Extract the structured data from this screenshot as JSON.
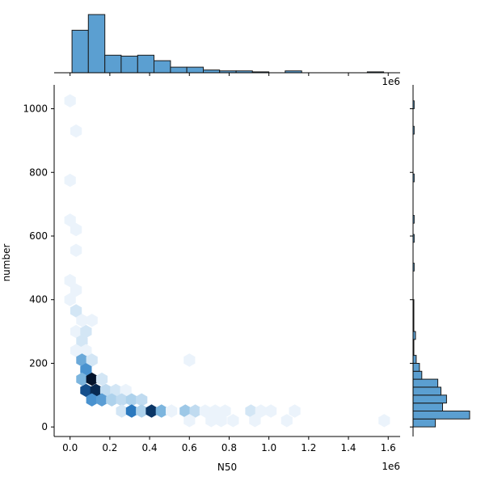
{
  "chart_data": {
    "type": "hexbin",
    "xlabel": "N50",
    "ylabel": "number",
    "x_offset_label": "1e6",
    "top_marginal_offset_label": "1e6",
    "xlim": [
      -0.08,
      1.66
    ],
    "ylim": [
      -30,
      1075
    ],
    "x_ticks": [
      0.0,
      0.2,
      0.4,
      0.6,
      0.8,
      1.0,
      1.2,
      1.4,
      1.6
    ],
    "x_tick_labels": [
      "0.0",
      "0.2",
      "0.4",
      "0.6",
      "0.8",
      "1.0",
      "1.2",
      "1.4",
      "1.6"
    ],
    "y_ticks": [
      0,
      200,
      400,
      600,
      800,
      1000
    ],
    "y_tick_labels": [
      "0",
      "200",
      "400",
      "600",
      "800",
      "1000"
    ],
    "hex_cells": [
      {
        "x": 0.0,
        "y": 1025,
        "count": 1
      },
      {
        "x": 0.03,
        "y": 930,
        "count": 1
      },
      {
        "x": 0.0,
        "y": 775,
        "count": 1
      },
      {
        "x": 0.0,
        "y": 650,
        "count": 1
      },
      {
        "x": 0.03,
        "y": 620,
        "count": 1
      },
      {
        "x": 0.03,
        "y": 555,
        "count": 1
      },
      {
        "x": 0.0,
        "y": 460,
        "count": 1
      },
      {
        "x": 0.03,
        "y": 430,
        "count": 1
      },
      {
        "x": 0.0,
        "y": 400,
        "count": 1
      },
      {
        "x": 0.03,
        "y": 365,
        "count": 2
      },
      {
        "x": 0.06,
        "y": 335,
        "count": 1
      },
      {
        "x": 0.11,
        "y": 335,
        "count": 1
      },
      {
        "x": 0.03,
        "y": 300,
        "count": 1
      },
      {
        "x": 0.08,
        "y": 300,
        "count": 2
      },
      {
        "x": 0.06,
        "y": 270,
        "count": 2
      },
      {
        "x": 0.03,
        "y": 240,
        "count": 1
      },
      {
        "x": 0.08,
        "y": 240,
        "count": 1
      },
      {
        "x": 0.06,
        "y": 210,
        "count": 8
      },
      {
        "x": 0.11,
        "y": 210,
        "count": 2
      },
      {
        "x": 0.6,
        "y": 210,
        "count": 1
      },
      {
        "x": 0.08,
        "y": 180,
        "count": 10
      },
      {
        "x": 0.06,
        "y": 150,
        "count": 7
      },
      {
        "x": 0.11,
        "y": 150,
        "count": 20
      },
      {
        "x": 0.16,
        "y": 150,
        "count": 2
      },
      {
        "x": 0.08,
        "y": 115,
        "count": 15
      },
      {
        "x": 0.13,
        "y": 115,
        "count": 18
      },
      {
        "x": 0.18,
        "y": 115,
        "count": 3
      },
      {
        "x": 0.23,
        "y": 115,
        "count": 2
      },
      {
        "x": 0.28,
        "y": 115,
        "count": 1
      },
      {
        "x": 0.11,
        "y": 85,
        "count": 10
      },
      {
        "x": 0.16,
        "y": 85,
        "count": 9
      },
      {
        "x": 0.21,
        "y": 85,
        "count": 4
      },
      {
        "x": 0.26,
        "y": 85,
        "count": 3
      },
      {
        "x": 0.31,
        "y": 85,
        "count": 4
      },
      {
        "x": 0.36,
        "y": 85,
        "count": 3
      },
      {
        "x": 0.26,
        "y": 50,
        "count": 2
      },
      {
        "x": 0.31,
        "y": 50,
        "count": 12
      },
      {
        "x": 0.36,
        "y": 50,
        "count": 4
      },
      {
        "x": 0.41,
        "y": 50,
        "count": 17
      },
      {
        "x": 0.46,
        "y": 50,
        "count": 7
      },
      {
        "x": 0.51,
        "y": 50,
        "count": 1
      },
      {
        "x": 0.58,
        "y": 50,
        "count": 5
      },
      {
        "x": 0.63,
        "y": 50,
        "count": 3
      },
      {
        "x": 0.68,
        "y": 50,
        "count": 1
      },
      {
        "x": 0.73,
        "y": 50,
        "count": 1
      },
      {
        "x": 0.78,
        "y": 50,
        "count": 1
      },
      {
        "x": 0.91,
        "y": 50,
        "count": 2
      },
      {
        "x": 0.96,
        "y": 50,
        "count": 1
      },
      {
        "x": 1.01,
        "y": 50,
        "count": 1
      },
      {
        "x": 1.13,
        "y": 50,
        "count": 1
      },
      {
        "x": 0.6,
        "y": 20,
        "count": 1
      },
      {
        "x": 0.71,
        "y": 20,
        "count": 1
      },
      {
        "x": 0.76,
        "y": 20,
        "count": 1
      },
      {
        "x": 0.82,
        "y": 20,
        "count": 1
      },
      {
        "x": 0.93,
        "y": 20,
        "count": 1
      },
      {
        "x": 1.09,
        "y": 20,
        "count": 1
      },
      {
        "x": 1.58,
        "y": 20,
        "count": 1
      }
    ],
    "top_histogram": {
      "bin_edges": [
        0.01,
        0.092,
        0.175,
        0.257,
        0.34,
        0.422,
        0.505,
        0.587,
        0.67,
        0.752,
        0.835,
        0.917,
        1.0,
        1.082,
        1.165,
        1.247,
        1.33,
        1.412,
        1.495,
        1.577,
        1.66
      ],
      "counts": [
        46,
        63,
        19,
        18,
        19,
        13,
        6,
        6,
        3,
        2,
        2,
        1,
        0,
        2,
        0,
        0,
        0,
        0,
        1,
        0
      ]
    },
    "right_histogram": {
      "bin_edges": [
        0,
        25,
        50,
        75,
        100,
        125,
        150,
        175,
        200,
        225,
        250,
        275,
        300,
        325,
        350,
        375,
        400
      ],
      "counts": [
        28,
        71,
        37,
        42,
        35,
        31,
        11,
        8,
        4,
        1,
        1,
        3,
        1,
        1,
        1,
        1
      ],
      "outliers": [
        {
          "y_low": 490,
          "y_high": 515,
          "count": 1
        },
        {
          "y_low": 580,
          "y_high": 605,
          "count": 1
        },
        {
          "y_low": 640,
          "y_high": 665,
          "count": 1
        },
        {
          "y_low": 770,
          "y_high": 795,
          "count": 1
        },
        {
          "y_low": 920,
          "y_high": 945,
          "count": 1
        },
        {
          "y_low": 1000,
          "y_high": 1025,
          "count": 1
        }
      ]
    }
  }
}
